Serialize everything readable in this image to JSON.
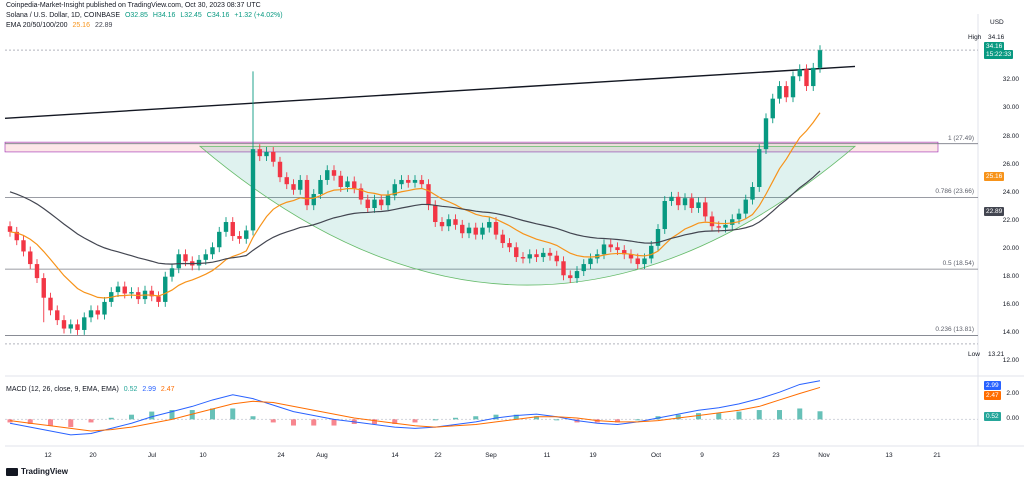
{
  "publisher": "Coinpedia-Market-Insight published on TradingView.com, Oct 30, 2023 08:37 UTC",
  "symbol": "Solana / U.S. Dollar, 1D, COINBASE",
  "ohlc": {
    "o": "O32.85",
    "h": "H34.16",
    "l": "L32.45",
    "c": "C34.16",
    "chg": "+1.32 (+4.02%)"
  },
  "ema_label": "EMA 20/50/100/200",
  "ema_values": [
    "25.16",
    "22.89"
  ],
  "currency": "USD",
  "high_label": "High",
  "high_value": "34.16",
  "low_label": "Low",
  "low_value": "13.21",
  "last_price": "34.16",
  "countdown": "15:22:33",
  "macd_label": "MACD (12, 26, close, 9, EMA, EMA)",
  "macd_values": [
    "0.52",
    "2.99",
    "2.47"
  ],
  "logo_text": "TradingView",
  "colors": {
    "up": "#089981",
    "down": "#f23645",
    "ema_fast": "#f7931a",
    "ema_slow": "#5d606b",
    "fib": "#9598a1",
    "macd": "#2962ff",
    "signal": "#ff6d00"
  },
  "chart_data": {
    "type": "candlestick",
    "y_ticks": [
      "32.00",
      "30.00",
      "28.00",
      "26.00",
      "24.00",
      "22.00",
      "20.00",
      "18.00",
      "16.00",
      "14.00",
      "12.00"
    ],
    "x_ticks": [
      "12",
      "20",
      "Jul",
      "10",
      "24",
      "Aug",
      "14",
      "22",
      "Sep",
      "11",
      "19",
      "Oct",
      "9",
      "23",
      "Nov",
      "13",
      "21"
    ],
    "macd_ticks": [
      "2.00",
      "0.00"
    ],
    "fib_levels": [
      {
        "label": "1 (27.49)",
        "value": 27.49
      },
      {
        "label": "0.786 (23.66)",
        "value": 23.66
      },
      {
        "label": "0.5 (18.54)",
        "value": 18.54
      },
      {
        "label": "0.236 (13.81)",
        "value": 13.81
      }
    ],
    "ema_200_value": 22.89,
    "ema_50_value": 25.16,
    "closes": [
      21.2,
      20.6,
      19.8,
      18.9,
      17.9,
      16.5,
      15.6,
      14.9,
      14.3,
      14.6,
      14.2,
      15.1,
      15.6,
      15.3,
      16.2,
      16.9,
      17.3,
      16.8,
      16.9,
      16.4,
      17.0,
      16.6,
      16.2,
      18.0,
      18.6,
      19.6,
      19.1,
      18.8,
      19.2,
      19.6,
      20.1,
      21.2,
      21.9,
      20.9,
      20.7,
      21.3,
      27.1,
      26.6,
      26.9,
      26.2,
      25.1,
      24.6,
      24.2,
      24.9,
      23.1,
      23.9,
      24.9,
      25.6,
      25.2,
      24.4,
      24.8,
      24.3,
      23.5,
      22.9,
      23.5,
      23.1,
      23.8,
      24.6,
      24.9,
      24.7,
      24.9,
      24.6,
      23.1,
      21.9,
      21.6,
      22.1,
      21.7,
      21.1,
      21.5,
      21.0,
      21.5,
      21.9,
      21.0,
      20.4,
      20.1,
      19.4,
      19.3,
      19.6,
      19.4,
      19.7,
      19.5,
      19.1,
      18.1,
      17.9,
      18.4,
      18.9,
      19.3,
      19.6,
      20.3,
      20.1,
      19.9,
      19.6,
      19.3,
      18.9,
      19.3,
      20.2,
      21.4,
      23.4,
      23.7,
      23.1,
      23.6,
      22.9,
      23.3,
      22.3,
      21.6,
      21.5,
      21.7,
      22.1,
      22.5,
      23.5,
      24.4,
      27.1,
      29.3,
      30.7,
      31.6,
      30.8,
      32.3,
      32.8,
      31.6,
      32.9,
      34.16
    ],
    "macd_line": [
      -0.3,
      -0.6,
      -0.9,
      -1.2,
      -1.1,
      -0.7,
      -0.3,
      0.2,
      0.6,
      1.0,
      1.5,
      1.9,
      1.6,
      1.1,
      0.6,
      0.3,
      0.0,
      -0.2,
      -0.4,
      -0.6,
      -0.7,
      -0.6,
      -0.4,
      -0.2,
      0.1,
      0.3,
      0.4,
      0.2,
      -0.1,
      -0.3,
      -0.4,
      -0.2,
      0.1,
      0.4,
      0.7,
      0.9,
      1.2,
      1.6,
      2.1,
      2.7,
      2.99
    ],
    "signal_line": [
      -0.1,
      -0.3,
      -0.5,
      -0.7,
      -0.9,
      -0.8,
      -0.6,
      -0.3,
      0.0,
      0.4,
      0.8,
      1.2,
      1.4,
      1.3,
      1.0,
      0.7,
      0.4,
      0.1,
      -0.1,
      -0.3,
      -0.5,
      -0.6,
      -0.5,
      -0.4,
      -0.2,
      0.0,
      0.2,
      0.2,
      0.1,
      -0.1,
      -0.2,
      -0.2,
      -0.1,
      0.1,
      0.3,
      0.5,
      0.7,
      1.0,
      1.5,
      2.0,
      2.47
    ]
  }
}
